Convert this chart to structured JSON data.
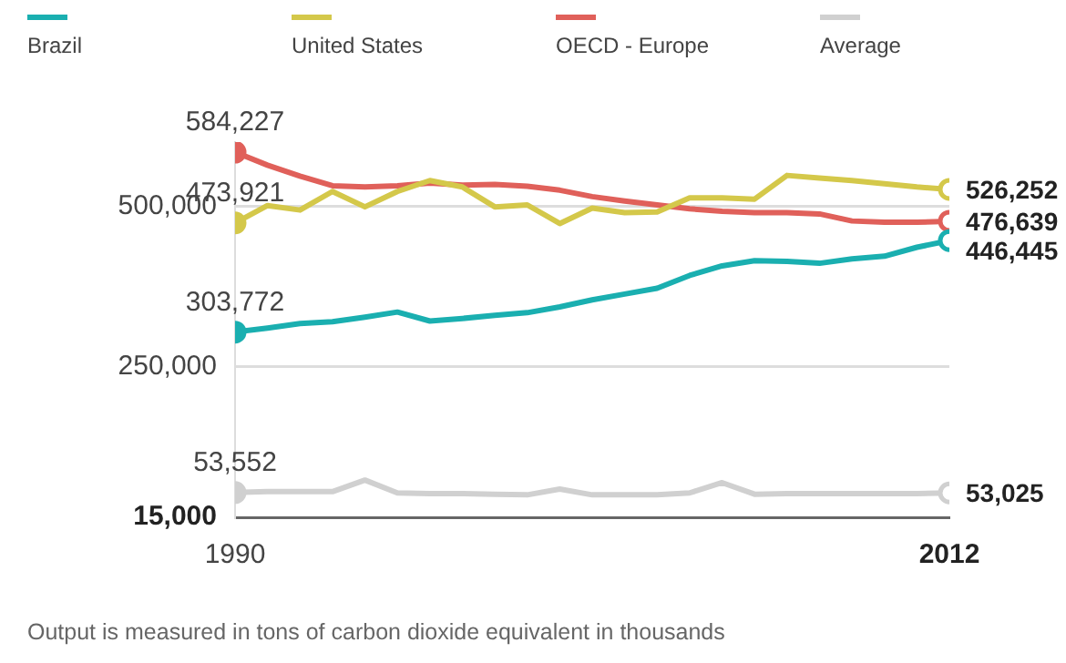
{
  "chart_data": {
    "type": "line",
    "x": [
      1990,
      1991,
      1992,
      1993,
      1994,
      1995,
      1996,
      1997,
      1998,
      1999,
      2000,
      2001,
      2002,
      2003,
      2004,
      2005,
      2006,
      2007,
      2008,
      2009,
      2010,
      2011,
      2012
    ],
    "series": [
      {
        "name": "Brazil",
        "color": "#1aafb0",
        "values": [
          303772,
          310000,
          317000,
          320000,
          327000,
          335000,
          321000,
          325000,
          330000,
          334000,
          343000,
          354000,
          363000,
          372000,
          392000,
          407000,
          415000,
          414000,
          411000,
          418000,
          422000,
          436000,
          446445
        ],
        "value_labels": [
          "303,772",
          null,
          null,
          null,
          null,
          null,
          null,
          null,
          null,
          null,
          null,
          null,
          null,
          null,
          null,
          null,
          null,
          null,
          null,
          null,
          null,
          null,
          "446,445"
        ]
      },
      {
        "name": "United States",
        "color": "#d4c84a",
        "values": [
          473921,
          501000,
          494000,
          523000,
          499000,
          523000,
          540000,
          530000,
          499000,
          502000,
          473000,
          497000,
          490000,
          491000,
          513000,
          513000,
          511000,
          548000,
          544000,
          540000,
          535000,
          530000,
          526252
        ],
        "value_labels": [
          "473,921",
          null,
          null,
          null,
          null,
          null,
          null,
          null,
          null,
          null,
          null,
          null,
          null,
          null,
          null,
          null,
          null,
          null,
          null,
          null,
          null,
          null,
          "526,252"
        ]
      },
      {
        "name": "OECD - Europe",
        "color": "#e0605a",
        "values": [
          584227,
          564000,
          547000,
          532000,
          530000,
          532000,
          536000,
          533000,
          534000,
          531000,
          525000,
          515000,
          508000,
          502000,
          496000,
          492000,
          490000,
          490000,
          488000,
          477000,
          475000,
          475000,
          476639
        ],
        "value_labels": [
          "584,227",
          null,
          null,
          null,
          null,
          null,
          null,
          null,
          null,
          null,
          null,
          null,
          null,
          null,
          null,
          null,
          null,
          null,
          null,
          null,
          null,
          null,
          "476,639"
        ]
      },
      {
        "name": "Average",
        "color": "#d0d0d0",
        "values": [
          53552,
          55000,
          55000,
          55000,
          73000,
          53000,
          52000,
          52000,
          51000,
          50000,
          59000,
          50000,
          50000,
          50000,
          53000,
          69000,
          51000,
          52000,
          52000,
          52000,
          52000,
          52000,
          53025
        ],
        "value_labels": [
          "53,552",
          null,
          null,
          null,
          null,
          null,
          null,
          null,
          null,
          null,
          null,
          null,
          null,
          null,
          null,
          null,
          null,
          null,
          null,
          null,
          null,
          null,
          "53,025"
        ]
      }
    ],
    "xlim": [
      1990,
      2012
    ],
    "xticks": [
      1990,
      2012
    ],
    "ylim": [
      15000,
      600000
    ],
    "yticks": [
      {
        "value": 15000,
        "label": "15,000"
      },
      {
        "value": 250000,
        "label": "250,000"
      },
      {
        "value": 500000,
        "label": "500,000"
      }
    ],
    "grid": "y",
    "legend": "top",
    "annotations": [
      "Output is measured in tons of carbon dioxide equivalent in thousands"
    ]
  }
}
